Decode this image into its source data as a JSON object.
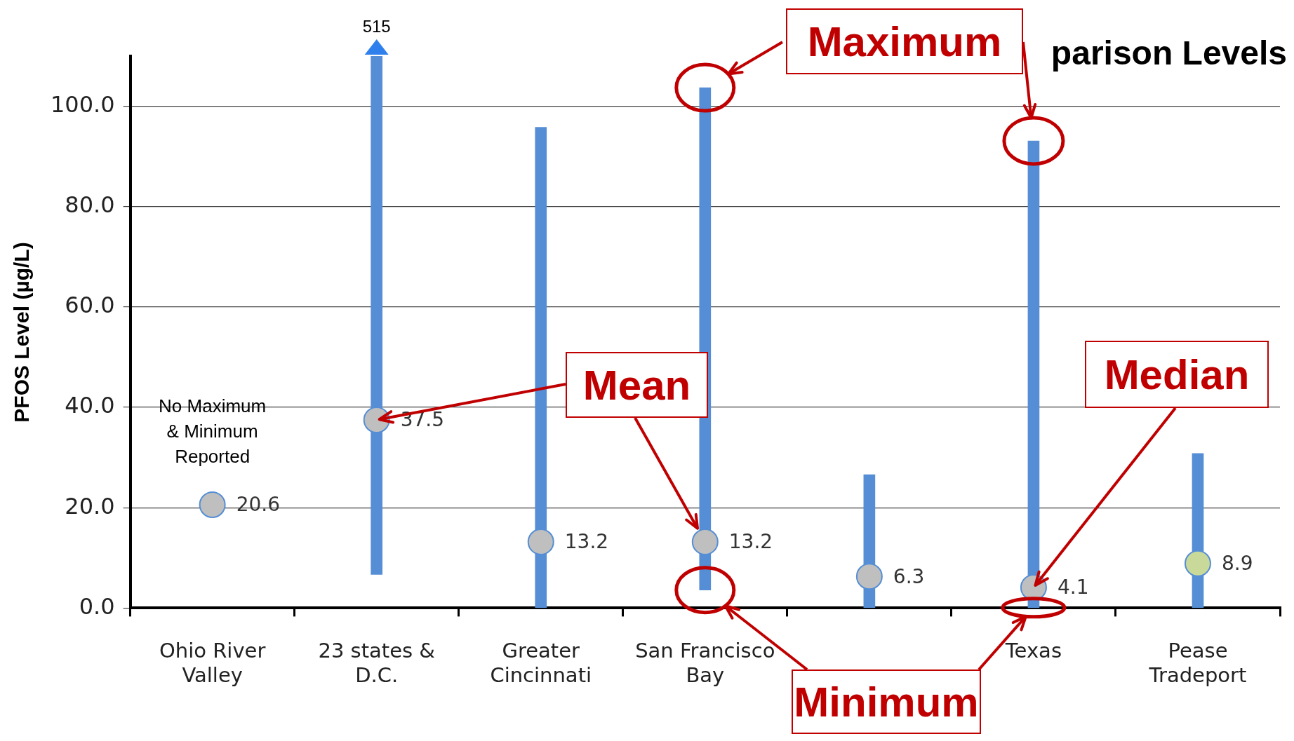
{
  "chart_data": {
    "type": "bar",
    "title": "parison Levels",
    "ylabel": "PFOS Level (µg/L)",
    "categories": [
      "Ohio River Valley",
      "23 states & D.C.",
      "Greater Cincinnati",
      "San Francisco Bay",
      null,
      "Texas",
      "Pease Tradeport"
    ],
    "series": [
      {
        "type": "bar",
        "color": "#558ed5",
        "base": [
          null,
          6.7,
          0,
          3.6,
          0,
          0,
          0
        ],
        "values": [
          null,
          103.3,
          95.8,
          100.1,
          26.6,
          93.1,
          30.8
        ]
      },
      {
        "type": "scatter",
        "color": "#558ed5",
        "colors": [
          "#bfbfbf",
          "#bfbfbf",
          "#bfbfbf",
          "#bfbfbf",
          "#bfbfbf",
          "#bfbfbf",
          "#c9d99a"
        ],
        "values": [
          20.6,
          37.5,
          13.2,
          13.2,
          6.3,
          4.1,
          8.9
        ],
        "value_labels": [
          "20.6",
          "37.5",
          "13.2",
          "13.2",
          "6.3",
          "4.1",
          "8.9"
        ]
      }
    ],
    "ylim": [
      0,
      110
    ],
    "yticks": [
      {
        "value": 0,
        "label": "0.0"
      },
      {
        "value": 20,
        "label": "20.0"
      },
      {
        "value": 40,
        "label": "40.0"
      },
      {
        "value": 60,
        "label": "60.0"
      },
      {
        "value": 80,
        "label": "80.0"
      },
      {
        "value": 100,
        "label": "100.0"
      }
    ],
    "grid": "y",
    "legend": false,
    "marker": "circle",
    "annotations": [
      {
        "text": "515",
        "x": "23 states & D.C.",
        "y": 110
      },
      "No Maximum & Minimum Reported",
      {
        "text": "Maximum",
        "x": "San Francisco Bay",
        "y": 103.7
      },
      {
        "text": "Mean",
        "x": "23 states & D.C.",
        "y": 37.5
      },
      {
        "text": "Median",
        "x": "Texas",
        "y": 4.1
      },
      {
        "text": "Minimum",
        "x": "San Francisco Bay",
        "y": 3.6
      }
    ]
  }
}
